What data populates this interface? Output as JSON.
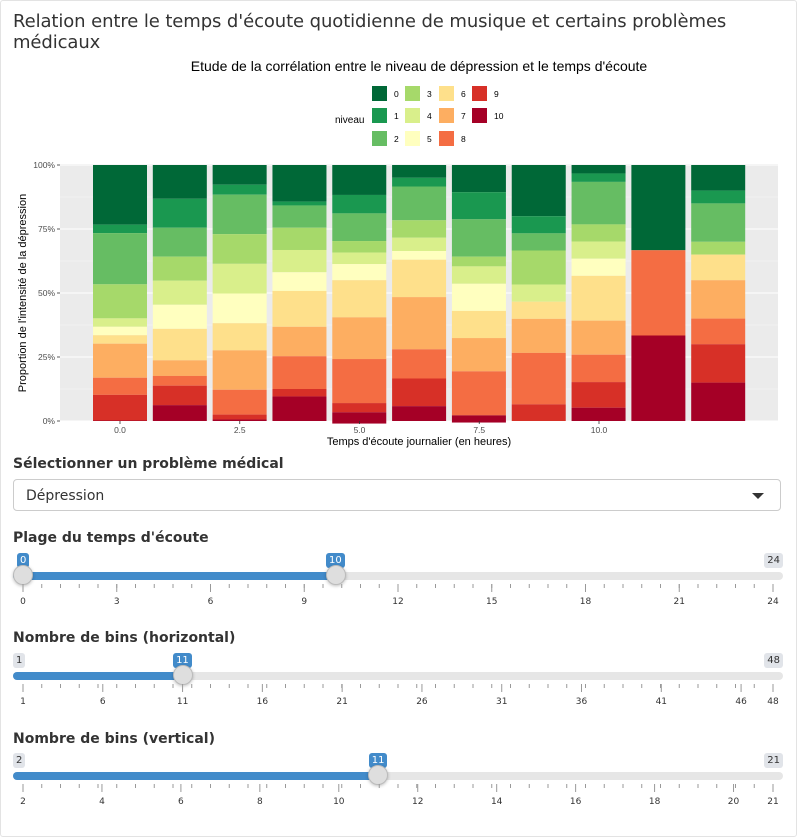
{
  "page": {
    "title": "Relation entre le temps d'écoute quotidienne de musique et certains problèmes médicaux"
  },
  "chart_data": {
    "type": "bar",
    "stacked": "fill",
    "title": "Etude de la corrélation entre le niveau de dépression et le temps d'écoute",
    "xlabel": "Temps d'écoute journalier (en heures)",
    "ylabel": "Proportion de l'intensité de la dépression",
    "x_ticks": [
      "0.0",
      "2.5",
      "5.0",
      "7.5",
      "10.0"
    ],
    "y_ticks": [
      "0%",
      "25%",
      "50%",
      "75%",
      "100%"
    ],
    "ylim": [
      0,
      1
    ],
    "legend": {
      "title": "niveau",
      "position": "top",
      "entries": [
        "0",
        "1",
        "2",
        "3",
        "4",
        "5",
        "6",
        "7",
        "8",
        "9",
        "10"
      ]
    },
    "colors": [
      "#006837",
      "#1a9850",
      "#66bd63",
      "#a6d96a",
      "#d9ef8b",
      "#ffffbf",
      "#fee08b",
      "#fdae61",
      "#f46d43",
      "#d73027",
      "#a50026"
    ],
    "categories": [
      "0",
      "1",
      "2",
      "3",
      "4",
      "5",
      "6",
      "7",
      "8",
      "9",
      "10"
    ],
    "series": [
      {
        "name": "0",
        "values": [
          0.233,
          0.132,
          0.077,
          0.143,
          0.117,
          0.05,
          0.106,
          0.2,
          0.033,
          0.333,
          0.1
        ]
      },
      {
        "name": "1",
        "values": [
          0.033,
          0.113,
          0.039,
          0.015,
          0.072,
          0.034,
          0.106,
          0.067,
          0.033,
          0.0,
          0.05
        ]
      },
      {
        "name": "2",
        "values": [
          0.2,
          0.113,
          0.154,
          0.087,
          0.108,
          0.132,
          0.146,
          0.067,
          0.166,
          0.0,
          0.15
        ]
      },
      {
        "name": "3",
        "values": [
          0.133,
          0.094,
          0.116,
          0.087,
          0.045,
          0.068,
          0.038,
          0.133,
          0.067,
          0.0,
          0.05
        ]
      },
      {
        "name": "4",
        "values": [
          0.033,
          0.094,
          0.116,
          0.087,
          0.045,
          0.052,
          0.068,
          0.067,
          0.067,
          0.0,
          0.0
        ]
      },
      {
        "name": "5",
        "values": [
          0.033,
          0.094,
          0.116,
          0.073,
          0.063,
          0.034,
          0.106,
          0.0,
          0.067,
          0.0,
          0.0
        ]
      },
      {
        "name": "6",
        "values": [
          0.033,
          0.123,
          0.106,
          0.14,
          0.145,
          0.146,
          0.106,
          0.067,
          0.175,
          0.0,
          0.1
        ]
      },
      {
        "name": "7",
        "values": [
          0.133,
          0.061,
          0.154,
          0.115,
          0.163,
          0.204,
          0.13,
          0.133,
          0.133,
          0.0,
          0.15
        ]
      },
      {
        "name": "8",
        "values": [
          0.067,
          0.038,
          0.097,
          0.128,
          0.172,
          0.114,
          0.172,
          0.201,
          0.107,
          0.333,
          0.1
        ]
      },
      {
        "name": "9",
        "values": [
          0.1,
          0.076,
          0.019,
          0.029,
          0.036,
          0.108,
          0.0,
          0.065,
          0.1,
          0.0,
          0.15
        ]
      },
      {
        "name": "10",
        "values": [
          0.002,
          0.062,
          0.006,
          0.096,
          0.044,
          0.058,
          0.028,
          0.0,
          0.052,
          0.334,
          0.15
        ]
      }
    ]
  },
  "controls": {
    "medical": {
      "label": "Sélectionner un problème médical",
      "value": "Dépression"
    },
    "time_range": {
      "label": "Plage du temps d'écoute",
      "min": 0,
      "max": 24,
      "from": 0,
      "to": 10,
      "min_label": "0",
      "max_label": "24",
      "from_label": "0",
      "to_label": "10",
      "ticks": [
        "0",
        "3",
        "6",
        "9",
        "12",
        "15",
        "18",
        "21",
        "24"
      ]
    },
    "bins_h": {
      "label": "Nombre de bins (horizontal)",
      "min": 1,
      "max": 48,
      "value": 11,
      "min_label": "1",
      "max_label": "48",
      "value_label": "11",
      "ticks": [
        "1",
        "6",
        "11",
        "16",
        "21",
        "26",
        "31",
        "36",
        "41",
        "46",
        "48"
      ]
    },
    "bins_v": {
      "label": "Nombre de bins (vertical)",
      "min": 2,
      "max": 21,
      "value": 11,
      "min_label": "2",
      "max_label": "21",
      "value_label": "11",
      "ticks": [
        "2",
        "4",
        "6",
        "8",
        "10",
        "12",
        "14",
        "16",
        "18",
        "20",
        "21"
      ]
    }
  }
}
